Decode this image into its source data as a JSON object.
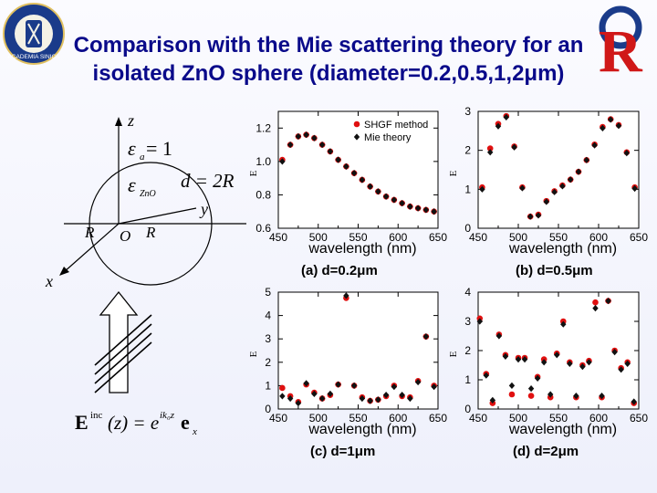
{
  "slide": {
    "title_line1": "Comparison with the Mie scattering theory for an",
    "title_line2": "isolated ZnO sphere (diameter=0.2,0.5,1,2μm)",
    "logo_left_text": "ACADEMIA SINICA",
    "logo_right_text": "R",
    "accent_color": "#0a0a8a"
  },
  "diagram": {
    "axis_z": "z",
    "axis_y": "y",
    "axis_x": "x",
    "epsilon_a": "ε",
    "epsilon_a_sub": "a",
    "epsilon_a_val": " = 1",
    "epsilon_zno": "ε",
    "epsilon_zno_sub": "ZnO",
    "d_eq": "d = 2R",
    "r_left": "R",
    "origin": "O",
    "r_right": "R",
    "einc_formula": "Einc(z) = e^(ik0z) ex",
    "einc_E": "E",
    "einc_sup": "inc",
    "einc_z": "(z) = e",
    "einc_exp": "ik₀z",
    "einc_e": "e",
    "einc_x": "x"
  },
  "chart_data": [
    {
      "type": "scatter",
      "id": "a",
      "caption": "(a) d=0.2μm",
      "xlabel": "wavelength (nm)",
      "ylabel": "E",
      "xlim": [
        450,
        650
      ],
      "ylim": [
        0.6,
        1.3
      ],
      "xticks": [
        450,
        500,
        550,
        600,
        650
      ],
      "yticks": [
        0.6,
        0.8,
        1.0,
        1.2
      ],
      "ytick_labels": [
        "0.6",
        "0.8",
        "1.0",
        "1.2"
      ],
      "legend": [
        "SHGF method",
        "Mie theory"
      ],
      "series": [
        {
          "name": "SHGF method",
          "color": "#e01010",
          "marker": "circle",
          "x": [
            455,
            465,
            475,
            485,
            495,
            505,
            515,
            525,
            535,
            545,
            555,
            565,
            575,
            585,
            595,
            605,
            615,
            625,
            635,
            645
          ],
          "y": [
            1.01,
            1.1,
            1.15,
            1.16,
            1.14,
            1.1,
            1.06,
            1.01,
            0.97,
            0.93,
            0.89,
            0.85,
            0.82,
            0.79,
            0.77,
            0.75,
            0.73,
            0.72,
            0.71,
            0.7
          ]
        },
        {
          "name": "Mie theory",
          "color": "#111111",
          "marker": "diamond",
          "x": [
            455,
            465,
            475,
            485,
            495,
            505,
            515,
            525,
            535,
            545,
            555,
            565,
            575,
            585,
            595,
            605,
            615,
            625,
            635,
            645
          ],
          "y": [
            1.0,
            1.1,
            1.15,
            1.16,
            1.14,
            1.1,
            1.06,
            1.01,
            0.97,
            0.93,
            0.89,
            0.85,
            0.82,
            0.79,
            0.77,
            0.75,
            0.73,
            0.72,
            0.71,
            0.7
          ]
        }
      ]
    },
    {
      "type": "scatter",
      "id": "b",
      "caption": "(b) d=0.5μm",
      "xlabel": "wavelength (nm)",
      "ylabel": "E",
      "xlim": [
        450,
        650
      ],
      "ylim": [
        0,
        3
      ],
      "xticks": [
        450,
        500,
        550,
        600,
        650
      ],
      "yticks": [
        0,
        1,
        2,
        3
      ],
      "ytick_labels": [
        "0",
        "1",
        "2",
        "3"
      ],
      "series": [
        {
          "name": "SHGF method",
          "color": "#e01010",
          "marker": "circle",
          "x": [
            455,
            465,
            475,
            485,
            495,
            505,
            515,
            525,
            535,
            545,
            555,
            565,
            575,
            585,
            595,
            605,
            615,
            625,
            635,
            645
          ],
          "y": [
            1.05,
            2.05,
            2.68,
            2.88,
            2.1,
            1.05,
            0.3,
            0.35,
            0.7,
            0.95,
            1.1,
            1.25,
            1.45,
            1.75,
            2.15,
            2.6,
            2.8,
            2.65,
            1.95,
            1.05
          ]
        },
        {
          "name": "Mie theory",
          "color": "#111111",
          "marker": "diamond",
          "x": [
            455,
            465,
            475,
            485,
            495,
            505,
            515,
            525,
            535,
            545,
            555,
            565,
            575,
            585,
            595,
            605,
            615,
            625,
            635,
            645
          ],
          "y": [
            1.0,
            1.95,
            2.62,
            2.85,
            2.08,
            1.03,
            0.3,
            0.33,
            0.68,
            0.93,
            1.08,
            1.25,
            1.45,
            1.75,
            2.13,
            2.57,
            2.79,
            2.63,
            1.93,
            1.02
          ]
        }
      ]
    },
    {
      "type": "scatter",
      "id": "c",
      "caption": "(c) d=1μm",
      "xlabel": "wavelength (nm)",
      "ylabel": "E",
      "xlim": [
        450,
        650
      ],
      "ylim": [
        0,
        5
      ],
      "xticks": [
        450,
        500,
        550,
        600,
        650
      ],
      "yticks": [
        0,
        1,
        2,
        3,
        4,
        5
      ],
      "ytick_labels": [
        "0",
        "1",
        "2",
        "3",
        "4",
        "5"
      ],
      "series": [
        {
          "name": "SHGF method",
          "color": "#e01010",
          "marker": "circle",
          "x": [
            455,
            465,
            475,
            485,
            495,
            505,
            515,
            525,
            535,
            545,
            555,
            565,
            575,
            585,
            595,
            605,
            615,
            625,
            635,
            645
          ],
          "y": [
            0.9,
            0.55,
            0.3,
            1.05,
            0.7,
            0.45,
            0.6,
            1.05,
            4.75,
            1.0,
            0.5,
            0.35,
            0.4,
            0.55,
            1.0,
            0.55,
            0.5,
            1.2,
            3.1,
            1.0
          ]
        },
        {
          "name": "Mie theory",
          "color": "#111111",
          "marker": "diamond",
          "x": [
            455,
            465,
            475,
            485,
            495,
            505,
            515,
            525,
            535,
            545,
            555,
            565,
            575,
            585,
            595,
            605,
            615,
            625,
            635,
            645
          ],
          "y": [
            0.55,
            0.45,
            0.25,
            1.1,
            0.65,
            0.45,
            0.65,
            1.05,
            4.85,
            1.0,
            0.45,
            0.35,
            0.4,
            0.6,
            0.95,
            0.6,
            0.45,
            1.15,
            3.1,
            0.95
          ]
        }
      ]
    },
    {
      "type": "scatter",
      "id": "d",
      "caption": "(d) d=2μm",
      "xlabel": "wavelength (nm)",
      "ylabel": "E",
      "xlim": [
        450,
        650
      ],
      "ylim": [
        0,
        4
      ],
      "xticks": [
        450,
        500,
        550,
        600,
        650
      ],
      "yticks": [
        0,
        1,
        2,
        3,
        4
      ],
      "ytick_labels": [
        "0",
        "1",
        "2",
        "3",
        "4"
      ],
      "series": [
        {
          "name": "SHGF method",
          "color": "#e01010",
          "marker": "circle",
          "x": [
            452,
            460,
            468,
            476,
            484,
            492,
            500,
            508,
            516,
            524,
            532,
            540,
            548,
            556,
            564,
            572,
            580,
            588,
            596,
            604,
            612,
            620,
            628,
            636,
            644
          ],
          "y": [
            3.1,
            1.2,
            0.2,
            2.55,
            1.85,
            0.5,
            1.75,
            1.75,
            0.45,
            1.1,
            1.7,
            0.4,
            1.9,
            3.0,
            1.6,
            0.4,
            1.5,
            1.65,
            3.65,
            0.4,
            3.7,
            2.0,
            1.4,
            1.6,
            0.2
          ]
        },
        {
          "name": "Mie theory",
          "color": "#111111",
          "marker": "diamond",
          "x": [
            452,
            460,
            468,
            476,
            484,
            492,
            500,
            508,
            516,
            524,
            532,
            540,
            548,
            556,
            564,
            572,
            580,
            588,
            596,
            604,
            612,
            620,
            628,
            636,
            644
          ],
          "y": [
            3.0,
            1.15,
            0.3,
            2.5,
            1.8,
            0.8,
            1.7,
            1.7,
            0.7,
            1.05,
            1.6,
            0.5,
            1.85,
            2.9,
            1.55,
            0.45,
            1.45,
            1.6,
            3.45,
            0.45,
            3.7,
            1.95,
            1.35,
            1.55,
            0.25
          ]
        }
      ]
    }
  ]
}
